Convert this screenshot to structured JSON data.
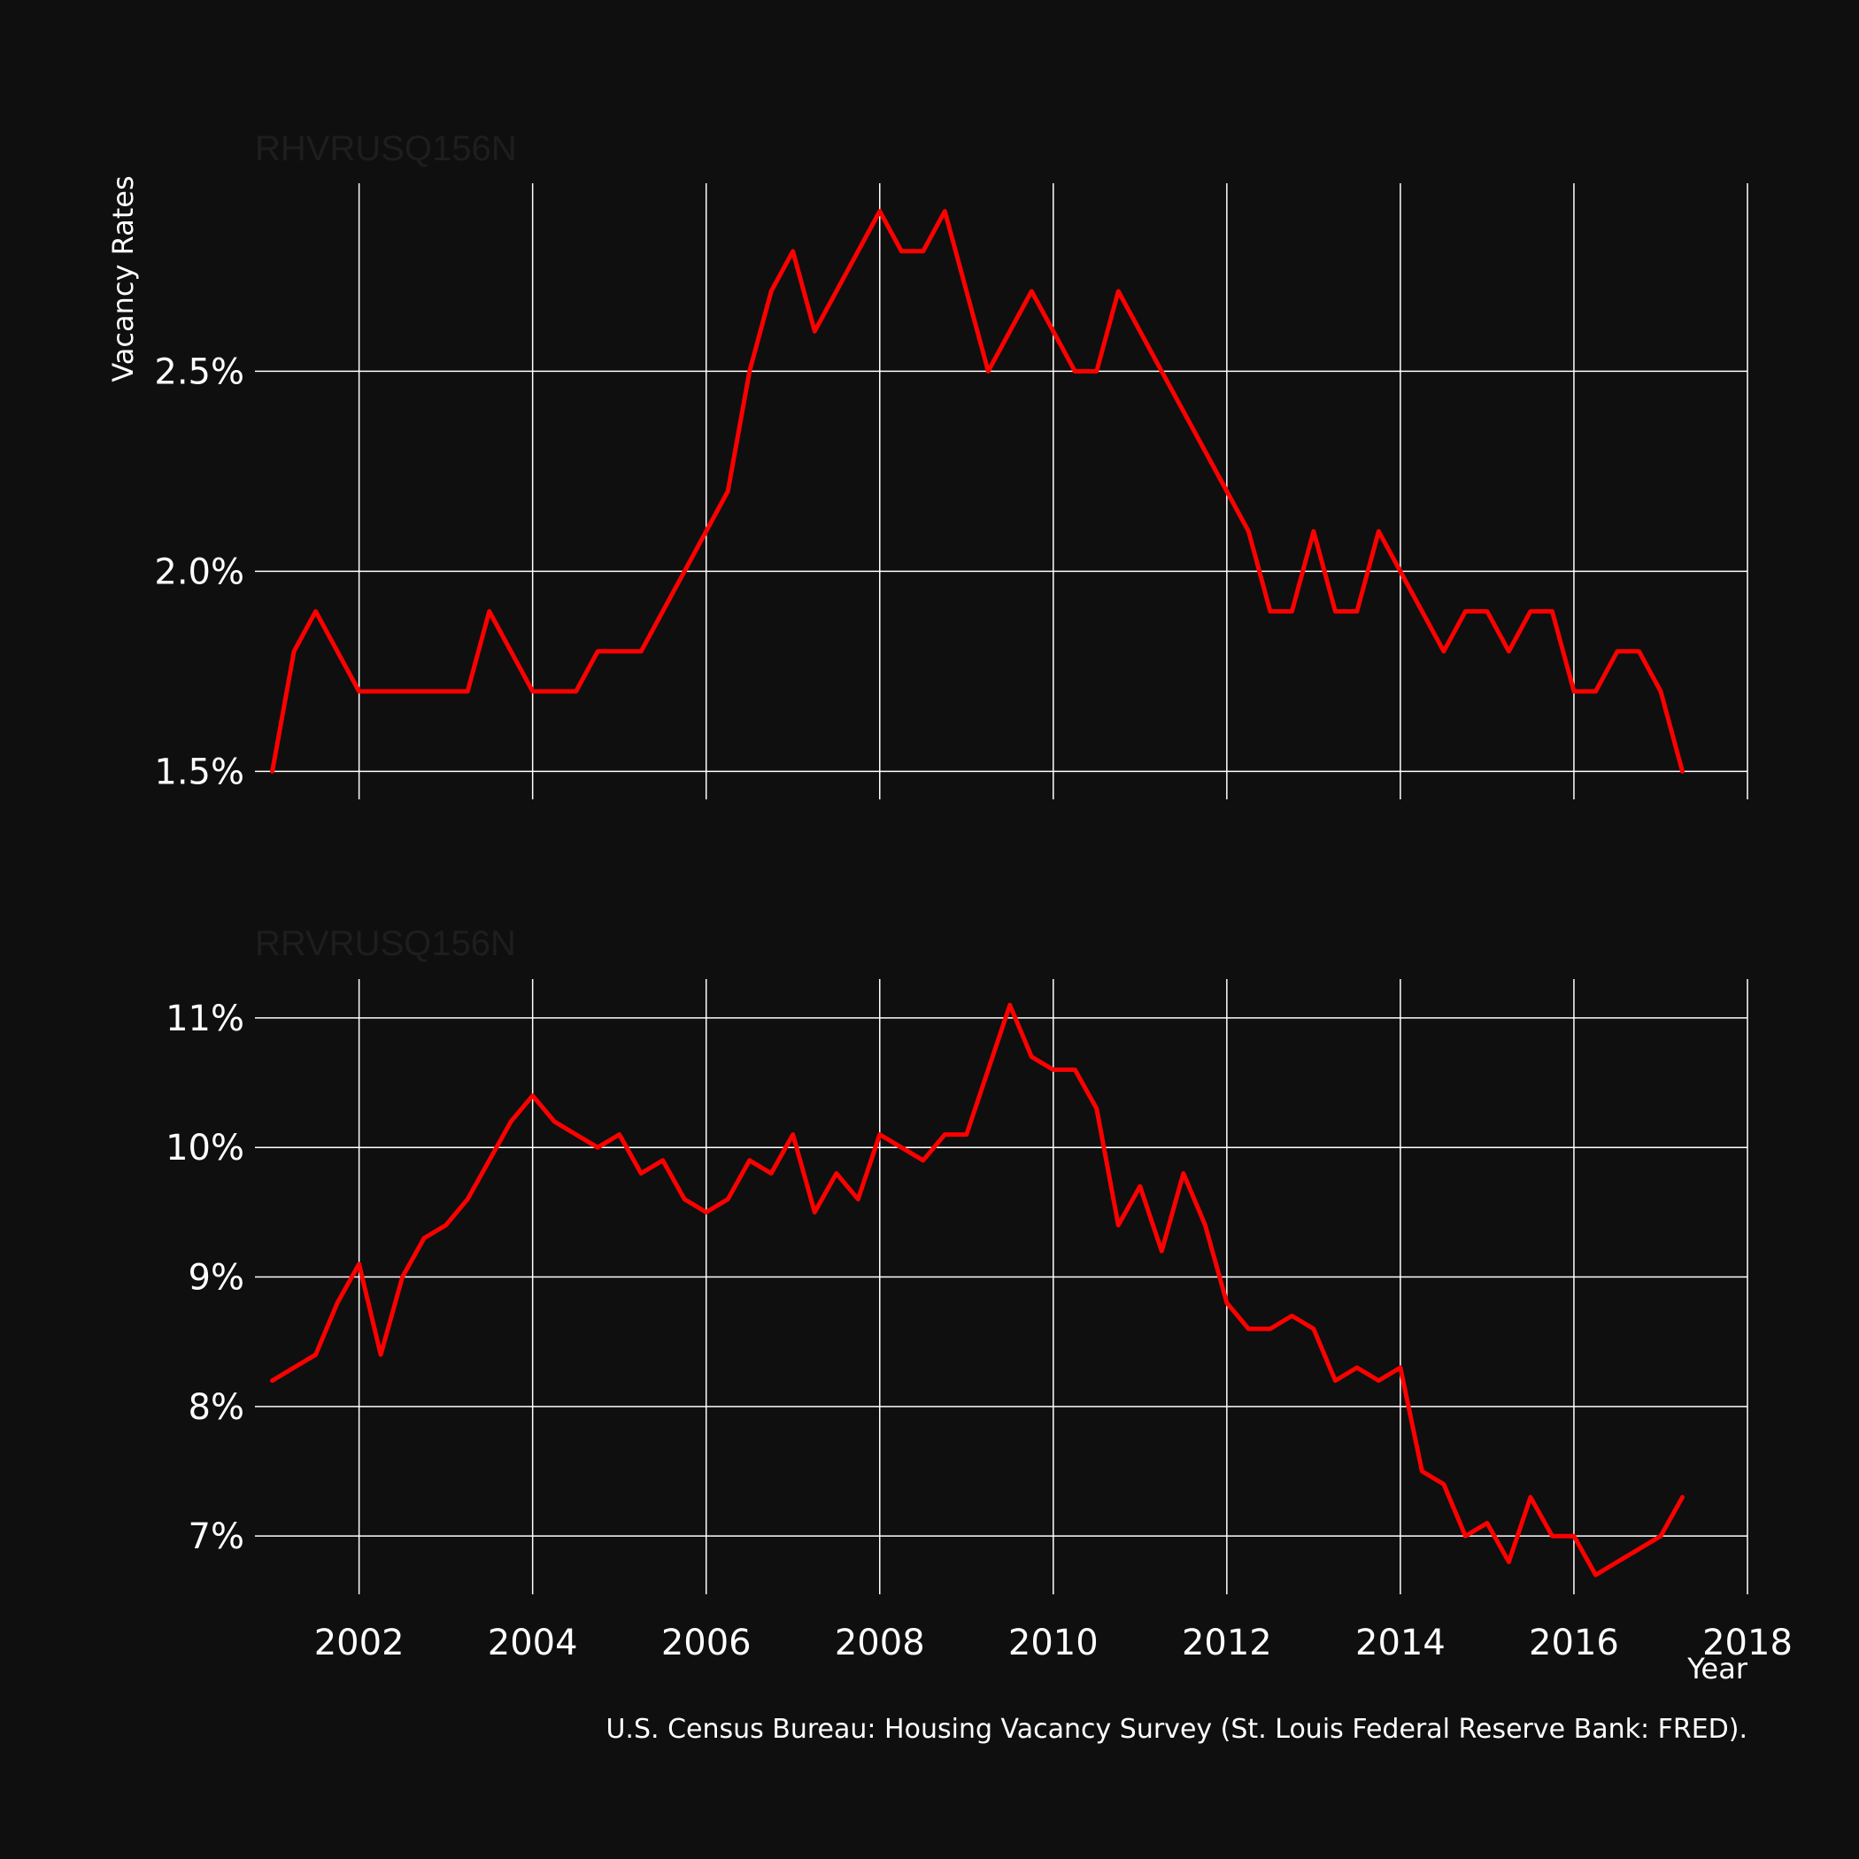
{
  "colors": {
    "background": "#0f0f0f",
    "line": "#ff0000",
    "grid": "#ffffff",
    "text": "#ffffff",
    "facet_title": "#1e1e1e"
  },
  "chart_data": [
    {
      "type": "line",
      "facet_title": "RHVRUSQ156N",
      "ylabel": "Vacancy Rates",
      "xlabel": "",
      "xlim": [
        2000.8,
        2018
      ],
      "ylim": [
        1.43,
        2.97
      ],
      "x_ticks": [
        2002,
        2004,
        2006,
        2008,
        2010,
        2012,
        2014,
        2016,
        2018
      ],
      "y_ticks": [
        1.5,
        2.0,
        2.5
      ],
      "y_tick_labels": [
        "1.5%",
        "2.0%",
        "2.5%"
      ],
      "grid": true,
      "series": [
        {
          "x": [
            2001.0,
            2001.25,
            2001.5,
            2001.75,
            2002.0,
            2002.25,
            2002.5,
            2002.75,
            2003.0,
            2003.25,
            2003.5,
            2003.75,
            2004.0,
            2004.25,
            2004.5,
            2004.75,
            2005.0,
            2005.25,
            2005.5,
            2005.75,
            2006.0,
            2006.25,
            2006.5,
            2006.75,
            2007.0,
            2007.25,
            2007.5,
            2007.75,
            2008.0,
            2008.25,
            2008.5,
            2008.75,
            2009.0,
            2009.25,
            2009.5,
            2009.75,
            2010.0,
            2010.25,
            2010.5,
            2010.75,
            2011.0,
            2011.25,
            2011.5,
            2011.75,
            2012.0,
            2012.25,
            2012.5,
            2012.75,
            2013.0,
            2013.25,
            2013.5,
            2013.75,
            2014.0,
            2014.25,
            2014.5,
            2014.75,
            2015.0,
            2015.25,
            2015.5,
            2015.75,
            2016.0,
            2016.25,
            2016.5,
            2016.75,
            2017.0,
            2017.25
          ],
          "y": [
            1.5,
            1.8,
            1.9,
            1.8,
            1.7,
            1.7,
            1.7,
            1.7,
            1.7,
            1.7,
            1.9,
            1.8,
            1.7,
            1.7,
            1.7,
            1.8,
            1.8,
            1.8,
            1.9,
            2.0,
            2.1,
            2.2,
            2.5,
            2.7,
            2.8,
            2.6,
            2.7,
            2.8,
            2.9,
            2.8,
            2.8,
            2.9,
            2.7,
            2.5,
            2.6,
            2.7,
            2.6,
            2.5,
            2.5,
            2.7,
            2.6,
            2.5,
            2.4,
            2.3,
            2.2,
            2.1,
            1.9,
            1.9,
            2.1,
            1.9,
            1.9,
            2.1,
            2.0,
            1.9,
            1.8,
            1.9,
            1.9,
            1.8,
            1.9,
            1.9,
            1.7,
            1.7,
            1.8,
            1.8,
            1.7,
            1.5
          ]
        }
      ]
    },
    {
      "type": "line",
      "facet_title": "RRVRUSQ156N",
      "ylabel": "",
      "xlabel": "Year",
      "xlim": [
        2000.8,
        2018
      ],
      "ylim": [
        6.55,
        11.3
      ],
      "x_ticks": [
        2002,
        2004,
        2006,
        2008,
        2010,
        2012,
        2014,
        2016,
        2018
      ],
      "x_tick_labels": [
        "2002",
        "2004",
        "2006",
        "2008",
        "2010",
        "2012",
        "2014",
        "2016",
        "2018"
      ],
      "y_ticks": [
        7,
        8,
        9,
        10,
        11
      ],
      "y_tick_labels": [
        "7%",
        "8%",
        "9%",
        "10%",
        "11%"
      ],
      "grid": true,
      "series": [
        {
          "x": [
            2001.0,
            2001.25,
            2001.5,
            2001.75,
            2002.0,
            2002.25,
            2002.5,
            2002.75,
            2003.0,
            2003.25,
            2003.5,
            2003.75,
            2004.0,
            2004.25,
            2004.5,
            2004.75,
            2005.0,
            2005.25,
            2005.5,
            2005.75,
            2006.0,
            2006.25,
            2006.5,
            2006.75,
            2007.0,
            2007.25,
            2007.5,
            2007.75,
            2008.0,
            2008.25,
            2008.5,
            2008.75,
            2009.0,
            2009.25,
            2009.5,
            2009.75,
            2010.0,
            2010.25,
            2010.5,
            2010.75,
            2011.0,
            2011.25,
            2011.5,
            2011.75,
            2012.0,
            2012.25,
            2012.5,
            2012.75,
            2013.0,
            2013.25,
            2013.5,
            2013.75,
            2014.0,
            2014.25,
            2014.5,
            2014.75,
            2015.0,
            2015.25,
            2015.5,
            2015.75,
            2016.0,
            2016.25,
            2016.5,
            2016.75,
            2017.0,
            2017.25
          ],
          "y": [
            8.2,
            8.3,
            8.4,
            8.8,
            9.1,
            8.4,
            9.0,
            9.3,
            9.4,
            9.6,
            9.9,
            10.2,
            10.4,
            10.2,
            10.1,
            10.0,
            10.1,
            9.8,
            9.9,
            9.6,
            9.5,
            9.6,
            9.9,
            9.8,
            10.1,
            9.5,
            9.8,
            9.6,
            10.1,
            10.0,
            9.9,
            10.1,
            10.1,
            10.6,
            11.1,
            10.7,
            10.6,
            10.6,
            10.3,
            9.4,
            9.7,
            9.2,
            9.8,
            9.4,
            8.8,
            8.6,
            8.6,
            8.7,
            8.6,
            8.2,
            8.3,
            8.2,
            8.3,
            7.5,
            7.4,
            7.0,
            7.1,
            6.8,
            7.3,
            7.0,
            7.0,
            6.7,
            6.8,
            6.9,
            7.0,
            7.3
          ]
        }
      ]
    }
  ],
  "caption": "U.S. Census Bureau: Housing Vacancy Survey (St. Louis Federal Reserve Bank: FRED)."
}
